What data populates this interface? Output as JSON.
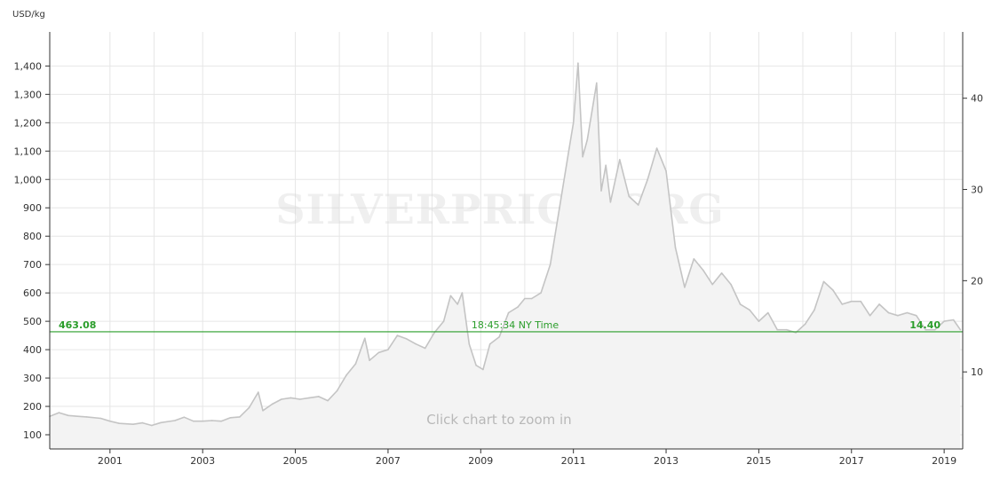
{
  "chart_data": {
    "type": "area",
    "unit_label": "USD/kg",
    "watermark": "SILVERPRICE.ORG",
    "zoom_hint": "Click chart to zoom in",
    "left_axis": {
      "ylim": [
        50,
        1520
      ],
      "ticks": [
        100,
        200,
        300,
        400,
        500,
        600,
        700,
        800,
        900,
        1000,
        1100,
        1200,
        1300,
        1400
      ],
      "tick_labels": [
        "100",
        "200",
        "300",
        "400",
        "500",
        "600",
        "700",
        "800",
        "900",
        "1,000",
        "1,100",
        "1,200",
        "1,300",
        "1,400"
      ]
    },
    "right_axis": {
      "ticks": [
        10,
        20,
        30,
        40
      ],
      "tick_labels": [
        "10",
        "20",
        "30",
        "40"
      ]
    },
    "x_axis": {
      "xlim": [
        1999.7,
        2019.4
      ],
      "ticks": [
        2001,
        2003,
        2005,
        2007,
        2009,
        2011,
        2013,
        2015,
        2017,
        2019
      ],
      "tick_labels": [
        "2001",
        "2003",
        "2005",
        "2007",
        "2009",
        "2011",
        "2013",
        "2015",
        "2017",
        "2019"
      ],
      "minor_gridlines": [
        2001.95,
        2005.95,
        2007.95,
        2009.95,
        2011.95,
        2013.95,
        2015.95,
        2017.95
      ]
    },
    "grid": true,
    "reference_line": {
      "value": 463.08,
      "left_label": "463.08",
      "center_label": "18:45:34 NY Time",
      "right_label": "14.40",
      "color": "#2a9d2a"
    },
    "line_color": "#c4c4c4",
    "fill_color": "#f3f3f3",
    "series": [
      {
        "x": [
          1999.7,
          1999.9,
          2000.1,
          2000.3,
          2000.5,
          2000.8,
          2001.0,
          2001.2,
          2001.5,
          2001.7,
          2001.9,
          2002.1,
          2002.4,
          2002.6,
          2002.8,
          2003.0,
          2003.2,
          2003.4,
          2003.6,
          2003.8,
          2004.0,
          2004.2,
          2004.3,
          2004.5,
          2004.7,
          2004.9,
          2005.1,
          2005.3,
          2005.5,
          2005.7,
          2005.9,
          2006.1,
          2006.3,
          2006.5,
          2006.6,
          2006.8,
          2007.0,
          2007.2,
          2007.4,
          2007.6,
          2007.8,
          2008.0,
          2008.2,
          2008.35,
          2008.5,
          2008.6,
          2008.75,
          2008.9,
          2009.05,
          2009.2,
          2009.4,
          2009.6,
          2009.8,
          2009.95,
          2010.1,
          2010.3,
          2010.5,
          2010.7,
          2010.9,
          2011.0,
          2011.1,
          2011.2,
          2011.3,
          2011.5,
          2011.6,
          2011.7,
          2011.8,
          2012.0,
          2012.2,
          2012.4,
          2012.6,
          2012.8,
          2013.0,
          2013.2,
          2013.4,
          2013.6,
          2013.8,
          2014.0,
          2014.2,
          2014.4,
          2014.6,
          2014.8,
          2015.0,
          2015.2,
          2015.4,
          2015.6,
          2015.8,
          2016.0,
          2016.2,
          2016.4,
          2016.6,
          2016.8,
          2017.0,
          2017.2,
          2017.4,
          2017.6,
          2017.8,
          2018.0,
          2018.2,
          2018.4,
          2018.6,
          2018.8,
          2019.0,
          2019.2,
          2019.35
        ],
        "values": [
          165,
          178,
          168,
          165,
          163,
          158,
          148,
          140,
          137,
          142,
          133,
          143,
          150,
          162,
          148,
          148,
          150,
          148,
          160,
          163,
          195,
          250,
          185,
          208,
          225,
          230,
          225,
          230,
          235,
          220,
          255,
          310,
          350,
          440,
          362,
          390,
          400,
          450,
          438,
          420,
          405,
          460,
          500,
          590,
          560,
          600,
          420,
          345,
          330,
          420,
          445,
          530,
          550,
          580,
          580,
          600,
          700,
          900,
          1100,
          1200,
          1410,
          1080,
          1140,
          1340,
          960,
          1050,
          920,
          1070,
          940,
          910,
          1000,
          1110,
          1030,
          760,
          620,
          720,
          680,
          630,
          670,
          630,
          560,
          540,
          500,
          530,
          470,
          470,
          460,
          490,
          540,
          640,
          610,
          560,
          570,
          570,
          520,
          560,
          530,
          520,
          530,
          520,
          470,
          470,
          500,
          505,
          470
        ]
      }
    ]
  }
}
